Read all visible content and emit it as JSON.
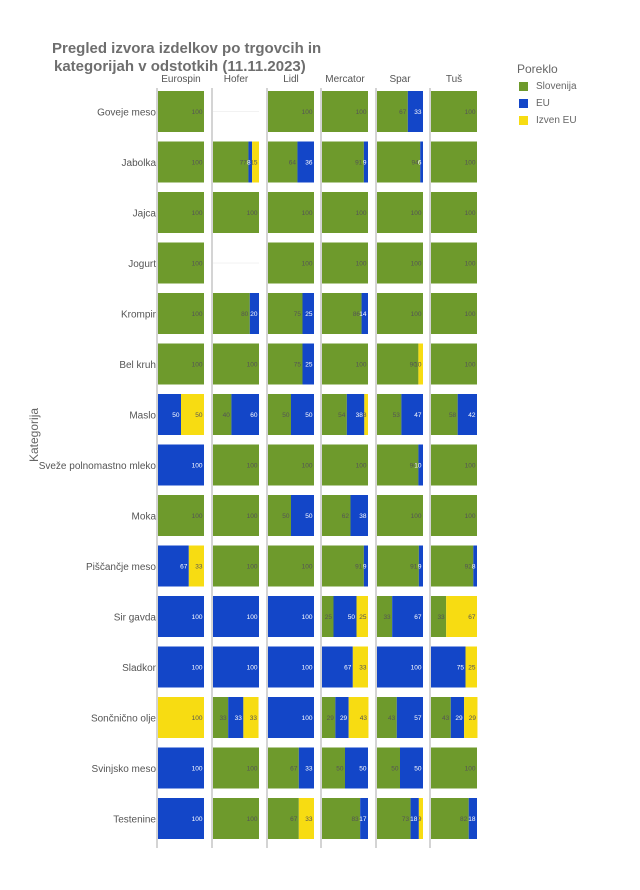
{
  "chart_data": {
    "type": "bar",
    "orientation": "horizontal",
    "stacked": true,
    "faceted_by": "trgovec",
    "title_lines": [
      "Pregled izvora izdelkov po trgovcih in",
      "kategorijah v odstotkih (11.11.2023)"
    ],
    "ylabel": "Kategorija",
    "legend_title": "Poreklo",
    "legend_position": "right",
    "xlim": [
      0,
      100
    ],
    "grid": false,
    "series": [
      {
        "name": "Slovenija",
        "color": "#6e9a2c"
      },
      {
        "name": "EU",
        "color": "#1346c8"
      },
      {
        "name": "Izven EU",
        "color": "#f7dc12"
      }
    ],
    "categories": [
      "Goveje meso",
      "Jabolka",
      "Jajca",
      "Jogurt",
      "Krompir",
      "Bel kruh",
      "Maslo",
      "Sveže polnomastno mleko",
      "Moka",
      "Piščančje meso",
      "Sir gavda",
      "Sladkor",
      "Sončnično olje",
      "Svinjsko meso",
      "Testenine"
    ],
    "panels": [
      {
        "store": "Eurospin",
        "rows": [
          [
            100,
            0,
            0
          ],
          [
            100,
            0,
            0
          ],
          [
            100,
            0,
            0
          ],
          [
            100,
            0,
            0
          ],
          [
            100,
            0,
            0
          ],
          [
            100,
            0,
            0
          ],
          [
            0,
            50,
            50
          ],
          [
            0,
            100,
            0
          ],
          [
            100,
            0,
            0
          ],
          [
            0,
            67,
            33
          ],
          [
            0,
            100,
            0
          ],
          [
            0,
            100,
            0
          ],
          [
            0,
            0,
            100
          ],
          [
            0,
            100,
            0
          ],
          [
            0,
            100,
            0
          ]
        ]
      },
      {
        "store": "Hofer",
        "rows": [
          null,
          [
            77,
            8,
            15
          ],
          [
            100,
            0,
            0
          ],
          null,
          [
            80,
            20,
            0
          ],
          [
            100,
            0,
            0
          ],
          [
            40,
            60,
            0
          ],
          [
            100,
            0,
            0
          ],
          [
            100,
            0,
            0
          ],
          [
            100,
            0,
            0
          ],
          [
            0,
            100,
            0
          ],
          [
            0,
            100,
            0
          ],
          [
            33,
            33,
            33
          ],
          [
            100,
            0,
            0
          ],
          [
            100,
            0,
            0
          ]
        ]
      },
      {
        "store": "Lidl",
        "rows": [
          [
            100,
            0,
            0
          ],
          [
            64,
            36,
            0
          ],
          [
            100,
            0,
            0
          ],
          [
            100,
            0,
            0
          ],
          [
            75,
            25,
            0
          ],
          [
            75,
            25,
            0
          ],
          [
            50,
            50,
            0
          ],
          [
            100,
            0,
            0
          ],
          [
            50,
            50,
            0
          ],
          [
            100,
            0,
            0
          ],
          [
            0,
            100,
            0
          ],
          [
            0,
            100,
            0
          ],
          [
            0,
            100,
            0
          ],
          [
            67,
            33,
            0
          ],
          [
            67,
            0,
            33
          ]
        ]
      },
      {
        "store": "Mercator",
        "rows": [
          [
            100,
            0,
            0
          ],
          [
            91,
            9,
            0
          ],
          [
            100,
            0,
            0
          ],
          [
            100,
            0,
            0
          ],
          [
            86,
            14,
            0
          ],
          [
            100,
            0,
            0
          ],
          [
            54,
            38,
            8
          ],
          [
            100,
            0,
            0
          ],
          [
            62,
            38,
            0
          ],
          [
            91,
            9,
            0
          ],
          [
            25,
            50,
            25
          ],
          [
            0,
            67,
            33
          ],
          [
            29,
            29,
            43
          ],
          [
            50,
            50,
            0
          ],
          [
            83,
            17,
            0
          ]
        ]
      },
      {
        "store": "Spar",
        "rows": [
          [
            67,
            33,
            0
          ],
          [
            94,
            6,
            0
          ],
          [
            100,
            0,
            0
          ],
          [
            100,
            0,
            0
          ],
          [
            100,
            0,
            0
          ],
          [
            90,
            0,
            10
          ],
          [
            53,
            47,
            0
          ],
          [
            90,
            10,
            0
          ],
          [
            100,
            0,
            0
          ],
          [
            91,
            9,
            0
          ],
          [
            33,
            67,
            0
          ],
          [
            0,
            100,
            0
          ],
          [
            43,
            57,
            0
          ],
          [
            50,
            50,
            0
          ],
          [
            73,
            18,
            9
          ]
        ]
      },
      {
        "store": "Tuš",
        "rows": [
          [
            100,
            0,
            0
          ],
          [
            100,
            0,
            0
          ],
          [
            100,
            0,
            0
          ],
          [
            100,
            0,
            0
          ],
          [
            100,
            0,
            0
          ],
          [
            100,
            0,
            0
          ],
          [
            58,
            42,
            0
          ],
          [
            100,
            0,
            0
          ],
          [
            100,
            0,
            0
          ],
          [
            92,
            8,
            0
          ],
          [
            33,
            0,
            67
          ],
          [
            0,
            75,
            25
          ],
          [
            43,
            29,
            29
          ],
          [
            100,
            0,
            0
          ],
          [
            82,
            18,
            0
          ]
        ]
      }
    ]
  }
}
